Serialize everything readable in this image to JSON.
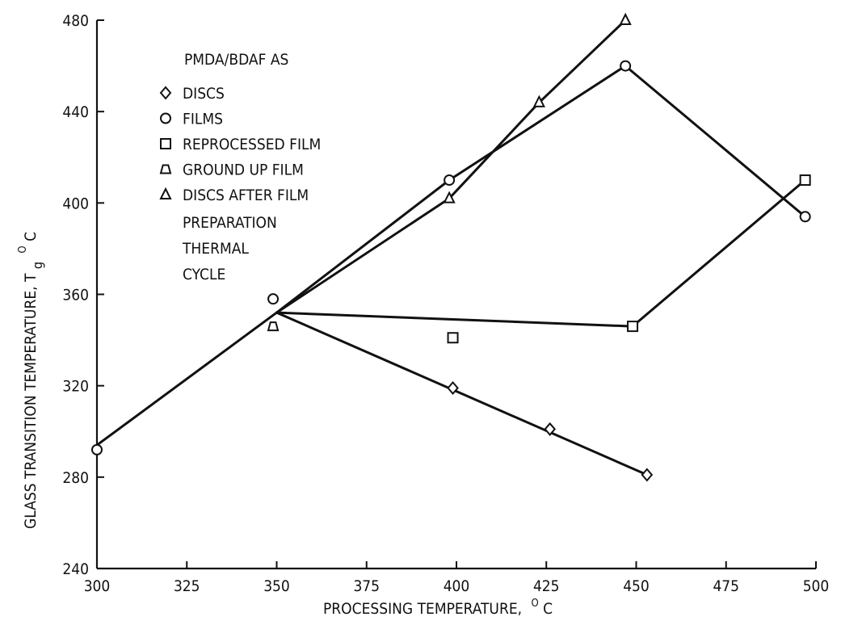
{
  "chart_data": {
    "type": "line",
    "xlabel": "PROCESSING TEMPERATURE,",
    "xlabel_unit": "C",
    "xlabel_degree": "O",
    "ylabel": "GLASS TRANSITION TEMPERATURE, T",
    "ylabel_subscript": "g",
    "ylabel_degree": "O",
    "ylabel_unit": "C",
    "xlim": [
      300,
      500
    ],
    "ylim": [
      240,
      480
    ],
    "x_ticks": [
      "300",
      "325",
      "350",
      "375",
      "400",
      "425",
      "450",
      "475",
      "500"
    ],
    "y_ticks": [
      "240",
      "280",
      "320",
      "360",
      "400",
      "440",
      "480"
    ],
    "legend_title": "PMDA/BDAF AS",
    "legend": [
      {
        "symbol": "diamond",
        "label": "DISCS"
      },
      {
        "symbol": "circle",
        "label": "FILMS"
      },
      {
        "symbol": "square",
        "label": "REPROCESSED FILM"
      },
      {
        "symbol": "triangle-half",
        "label": "GROUND UP FILM"
      },
      {
        "symbol": "triangle",
        "label": "DISCS AFTER FILM"
      }
    ],
    "legend_note": [
      "PREPARATION",
      "THERMAL",
      "CYCLE"
    ],
    "series": [
      {
        "symbol": "diamond",
        "points": [
          [
            399,
            319
          ],
          [
            426,
            301
          ],
          [
            453,
            281
          ]
        ],
        "line": [
          [
            350,
            352
          ],
          [
            453,
            281
          ]
        ]
      },
      {
        "symbol": "circle",
        "points": [
          [
            300,
            292
          ],
          [
            349,
            358
          ],
          [
            398,
            410
          ],
          [
            447,
            460
          ],
          [
            497,
            394
          ]
        ],
        "line": [
          [
            300,
            294
          ],
          [
            350,
            352
          ],
          [
            398,
            410
          ],
          [
            447,
            460
          ],
          [
            497,
            394
          ]
        ]
      },
      {
        "symbol": "square",
        "points": [
          [
            399,
            341
          ],
          [
            449,
            346
          ],
          [
            497,
            410
          ]
        ],
        "line": [
          [
            350,
            352
          ],
          [
            449,
            346
          ],
          [
            497,
            410
          ]
        ]
      },
      {
        "symbol": "triangle-half",
        "points": [
          [
            349,
            346
          ]
        ],
        "line": []
      },
      {
        "symbol": "triangle",
        "points": [
          [
            398,
            402
          ],
          [
            423,
            444
          ],
          [
            447,
            480
          ]
        ],
        "line": [
          [
            350,
            352
          ],
          [
            398,
            402
          ],
          [
            423,
            444
          ],
          [
            447,
            480
          ]
        ]
      }
    ]
  }
}
